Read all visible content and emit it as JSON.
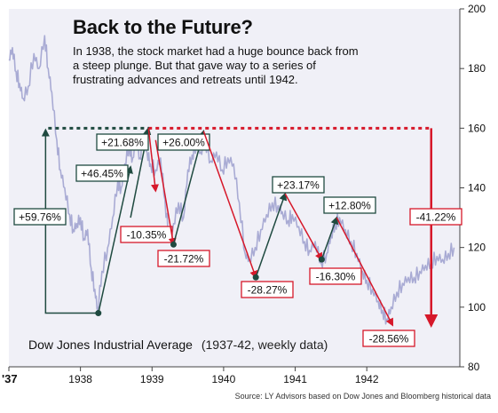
{
  "title": "Back to the Future?",
  "subtitle": "In 1938, the stock market had a huge bounce back from a steep plunge. But that gave way to a series of frustrating advances and retreats until 1942.",
  "series_caption": "Dow Jones Industrial Average",
  "series_caption_detail": "(1937-42, weekly data)",
  "source": "Source: LY Advisors based on Dow Jones and Bloomberg historical data",
  "colors": {
    "price_line": "#a9abd4",
    "advance": "#1f4a40",
    "retreat": "#d6182a",
    "background": "#f0f0f7",
    "reference_green": "#1f4a40",
    "reference_red": "#d6182a"
  },
  "chart_data": {
    "type": "line",
    "title": "Back to the Future?",
    "ylim": [
      80,
      200
    ],
    "y_ticks": [
      80,
      100,
      120,
      140,
      160,
      180,
      200
    ],
    "x_tick_labels": [
      "'37",
      "1938",
      "1939",
      "1940",
      "1941",
      "1942"
    ],
    "x_tick_years": [
      1937.0,
      1938.0,
      1939.0,
      1940.0,
      1941.0,
      1942.0
    ],
    "xlim": [
      1937.0,
      1943.3
    ],
    "grid": false,
    "series": [
      {
        "name": "Dow Jones Industrial Average",
        "x": [
          1937.0,
          1937.05,
          1937.1,
          1937.15,
          1937.2,
          1937.27,
          1937.35,
          1937.42,
          1937.5,
          1937.55,
          1937.6,
          1937.67,
          1937.72,
          1937.78,
          1937.85,
          1937.9,
          1937.95,
          1938.0,
          1938.05,
          1938.1,
          1938.15,
          1938.2,
          1938.24,
          1938.3,
          1938.38,
          1938.45,
          1938.52,
          1938.57,
          1938.62,
          1938.68,
          1938.73,
          1938.78,
          1938.83,
          1938.88,
          1938.93,
          1938.98,
          1939.05,
          1939.12,
          1939.18,
          1939.24,
          1939.3,
          1939.37,
          1939.44,
          1939.5,
          1939.56,
          1939.62,
          1939.68,
          1939.74,
          1939.82,
          1939.9,
          1939.98,
          1940.06,
          1940.14,
          1940.22,
          1940.3,
          1940.36,
          1940.44,
          1940.52,
          1940.6,
          1940.68,
          1940.76,
          1940.82,
          1940.9,
          1940.96,
          1941.05,
          1941.13,
          1941.2,
          1941.28,
          1941.36,
          1941.44,
          1941.5,
          1941.56,
          1941.62,
          1941.7,
          1941.78,
          1941.86,
          1941.94,
          1942.0,
          1942.08,
          1942.16,
          1942.22,
          1942.28,
          1942.34,
          1942.42,
          1942.5,
          1942.58,
          1942.66,
          1942.74,
          1942.82,
          1942.9,
          1942.98,
          1943.06,
          1943.14,
          1943.22
        ],
        "values": [
          183,
          187,
          179,
          175,
          170,
          174,
          185,
          180,
          191,
          180,
          172,
          156,
          146,
          140,
          131,
          126,
          128,
          130,
          123,
          126,
          113,
          106,
          99,
          112,
          120,
          130,
          142,
          140,
          148,
          154,
          150,
          156,
          150,
          158,
          152,
          148,
          146,
          150,
          136,
          122,
          128,
          135,
          130,
          146,
          151,
          155,
          152,
          156,
          149,
          152,
          146,
          150,
          148,
          135,
          118,
          116,
          120,
          126,
          131,
          135,
          134,
          132,
          129,
          131,
          127,
          122,
          119,
          122,
          115,
          118,
          124,
          128,
          130,
          126,
          122,
          118,
          112,
          109,
          106,
          102,
          99,
          96,
          100,
          105,
          108,
          110,
          110,
          112,
          114,
          115,
          117,
          116,
          118,
          120
        ]
      }
    ],
    "annotations": [
      {
        "label": "+59.76%",
        "kind": "advance",
        "from": [
          1938.25,
          98
        ],
        "to": [
          1937.55,
          160
        ]
      },
      {
        "label": "+46.45%",
        "kind": "advance",
        "from": [
          1938.25,
          98
        ],
        "to": [
          1938.7,
          147
        ]
      },
      {
        "label": "+21.68%",
        "kind": "advance",
        "from": [
          1938.7,
          130
        ],
        "to": [
          1938.95,
          160
        ]
      },
      {
        "label": "-10.35%",
        "kind": "retreat",
        "from": [
          1938.95,
          160
        ],
        "to": [
          1939.05,
          139
        ]
      },
      {
        "label": "-21.72%",
        "kind": "retreat",
        "from": [
          1939.05,
          156
        ],
        "to": [
          1939.3,
          121
        ]
      },
      {
        "label": "+26.00%",
        "kind": "advance",
        "from": [
          1939.3,
          121
        ],
        "to": [
          1939.72,
          159
        ]
      },
      {
        "label": "-28.27%",
        "kind": "retreat",
        "from": [
          1939.72,
          159
        ],
        "to": [
          1940.45,
          110
        ]
      },
      {
        "label": "+23.17%",
        "kind": "advance",
        "from": [
          1940.45,
          110
        ],
        "to": [
          1940.86,
          138
        ]
      },
      {
        "label": "-16.30%",
        "kind": "retreat",
        "from": [
          1940.86,
          138
        ],
        "to": [
          1941.37,
          116
        ]
      },
      {
        "label": "+12.80%",
        "kind": "advance",
        "from": [
          1941.37,
          116
        ],
        "to": [
          1941.58,
          130
        ]
      },
      {
        "label": "-28.56%",
        "kind": "retreat",
        "from": [
          1941.58,
          130
        ],
        "to": [
          1942.36,
          94
        ]
      },
      {
        "label": "-41.22%",
        "kind": "retreat",
        "from": [
          1942.9,
          160
        ],
        "to": [
          1942.9,
          94
        ]
      }
    ],
    "reference_line": {
      "value": 160,
      "from_year": 1937.55,
      "to_year": 1942.9
    }
  }
}
